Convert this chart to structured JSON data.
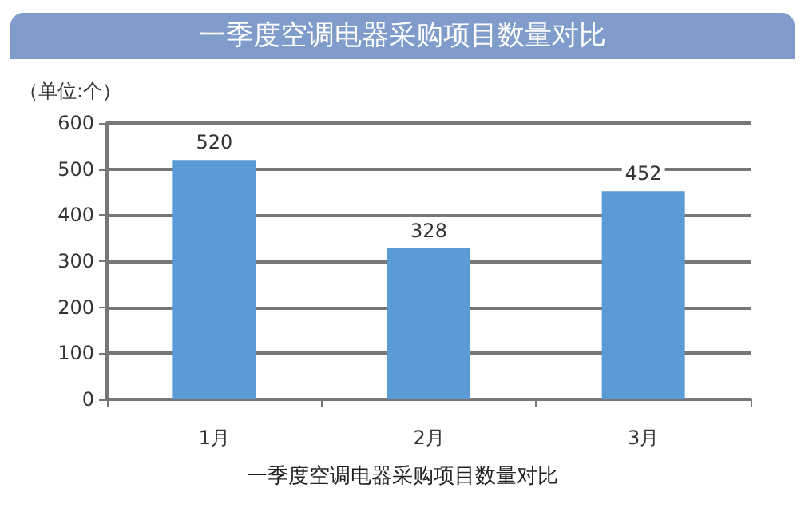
{
  "chart_data": {
    "type": "bar",
    "title": "一季度空调电器采购项目数量对比",
    "ylabel": "（单位:个）",
    "categories": [
      "1月",
      "2月",
      "3月"
    ],
    "values": [
      520,
      328,
      452
    ],
    "color": "#5b9bd5",
    "ylim": [
      0,
      600
    ],
    "yticks": [
      0,
      100,
      200,
      300,
      400,
      500,
      600
    ],
    "grid": "y",
    "data_labels": true,
    "annotations": [
      "一季度空调电器采购项目数量对比"
    ]
  }
}
